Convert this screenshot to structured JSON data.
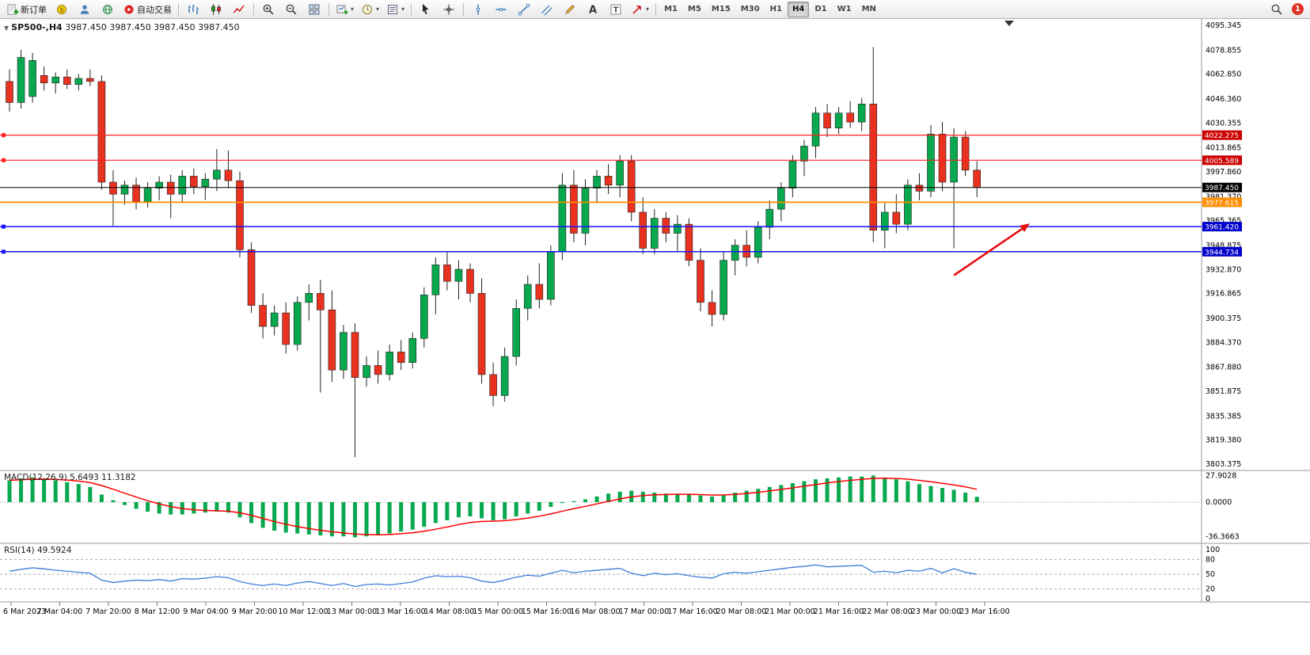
{
  "toolbar": {
    "items": [
      {
        "name": "new-order-button",
        "icon": "neworder",
        "label": "新订单"
      },
      {
        "name": "deposit-funds-icon",
        "icon": "coin"
      },
      {
        "name": "profile-icon",
        "icon": "user"
      },
      {
        "name": "community-icon",
        "icon": "globe"
      },
      {
        "name": "auto-trading-button",
        "icon": "autotrade",
        "label": "自动交易"
      },
      {
        "sep": true
      },
      {
        "name": "bar-chart-icon",
        "icon": "bars"
      },
      {
        "name": "candlestick-chart-icon",
        "icon": "candles"
      },
      {
        "name": "line-chart-icon",
        "icon": "linechart"
      },
      {
        "sep": true
      },
      {
        "name": "zoom-in-icon",
        "icon": "zoomin"
      },
      {
        "name": "zoom-out-icon",
        "icon": "zoomout"
      },
      {
        "name": "tile-windows-icon",
        "icon": "tile"
      },
      {
        "sep": true
      },
      {
        "name": "new-chart-icon",
        "icon": "newchart",
        "dropdown": true
      },
      {
        "name": "profiles-icon",
        "icon": "clock",
        "dropdown": true
      },
      {
        "name": "templates-icon",
        "icon": "templates",
        "dropdown": true
      },
      {
        "sep": true
      },
      {
        "name": "cursor-icon",
        "icon": "cursor"
      },
      {
        "name": "crosshair-icon",
        "icon": "crosshair"
      },
      {
        "sep": true
      },
      {
        "name": "vertical-line-icon",
        "icon": "vline"
      },
      {
        "name": "horizontal-line-icon",
        "icon": "hline"
      },
      {
        "name": "trendline-icon",
        "icon": "trendline"
      },
      {
        "name": "equidistant-channel-icon",
        "icon": "channel"
      },
      {
        "name": "draw-tools-icon",
        "icon": "draw"
      },
      {
        "name": "text-label-button",
        "icon": "textA"
      },
      {
        "name": "text-box-button",
        "icon": "textT"
      },
      {
        "name": "arrow-objects-icon",
        "icon": "arrows",
        "dropdown": true
      },
      {
        "sep": true
      }
    ],
    "timeframes": [
      "M1",
      "M5",
      "M15",
      "M30",
      "H1",
      "H4",
      "D1",
      "W1",
      "MN"
    ],
    "active_timeframe": "H4",
    "right_items": [
      {
        "name": "symbol-search-button",
        "icon": "search"
      }
    ],
    "notification_badge": "1"
  },
  "chart_data": {
    "type": "candlestick",
    "header": {
      "caret": "▼",
      "symbol": "SP500-,H4",
      "quotes": "3987.450 3987.450 3987.450 3987.450"
    },
    "ylim": [
      3803.375,
      4095.345
    ],
    "price_axis_labels": [
      "4095.345",
      "4078.855",
      "4062.850",
      "4046.360",
      "4030.355",
      "4013.865",
      "3997.860",
      "3981.370",
      "3965.365",
      "3948.875",
      "3932.870",
      "3916.865",
      "3900.375",
      "3884.370",
      "3867.880",
      "3851.875",
      "3835.385",
      "3819.380",
      "3803.375"
    ],
    "time_labels": [
      "6 Mar 2023",
      "7 Mar 04:00",
      "7 Mar 20:00",
      "8 Mar 12:00",
      "9 Mar 04:00",
      "9 Mar 20:00",
      "10 Mar 12:00",
      "13 Mar 00:00",
      "13 Mar 16:00",
      "14 Mar 08:00",
      "15 Mar 00:00",
      "15 Mar 16:00",
      "16 Mar 08:00",
      "17 Mar 00:00",
      "17 Mar 16:00",
      "20 Mar 08:00",
      "21 Mar 00:00",
      "21 Mar 16:00",
      "22 Mar 08:00",
      "23 Mar 00:00",
      "23 Mar 16:00"
    ],
    "levels": [
      {
        "label": "4022.275",
        "price": 4022.275,
        "line_color": "#ff2020",
        "tag_color": "#cc0000",
        "width": 1.2,
        "marker": true
      },
      {
        "label": "4005.589",
        "price": 4005.589,
        "line_color": "#ff2020",
        "tag_color": "#cc0000",
        "width": 1.2,
        "marker": true
      },
      {
        "label": "3987.450",
        "price": 3987.45,
        "line_color": "#000000",
        "tag_color": "#000000",
        "width": 1,
        "marker": false
      },
      {
        "label": "3977.615",
        "price": 3977.615,
        "line_color": "#ff8d00",
        "tag_color": "#ff8d00",
        "width": 1.8,
        "marker": false
      },
      {
        "label": "3961.420",
        "price": 3961.42,
        "line_color": "#1515ff",
        "tag_color": "#0000cc",
        "width": 1.5,
        "marker": true
      },
      {
        "label": "3944.734",
        "price": 3944.734,
        "line_color": "#1515ff",
        "tag_color": "#0000cc",
        "width": 1.5,
        "marker": true
      }
    ],
    "colors": {
      "up": "#07a84e",
      "down": "#e8321f",
      "wick": "#222222"
    },
    "ohlc": [
      [
        4058,
        4066,
        4038,
        4044
      ],
      [
        4044,
        4079,
        4040,
        4074
      ],
      [
        4048,
        4077,
        4044,
        4072
      ],
      [
        4062,
        4068,
        4052,
        4057
      ],
      [
        4057,
        4064,
        4050,
        4061
      ],
      [
        4061,
        4066,
        4053,
        4056
      ],
      [
        4056,
        4063,
        4052,
        4060
      ],
      [
        4060,
        4066,
        4055,
        4058
      ],
      [
        4058,
        4062,
        3986,
        3991
      ],
      [
        3991,
        3999,
        3962,
        3983
      ],
      [
        3983,
        3992,
        3976,
        3989
      ],
      [
        3989,
        3994,
        3973,
        3978
      ],
      [
        3978,
        3991,
        3974,
        3987
      ],
      [
        3987,
        3995,
        3979,
        3991
      ],
      [
        3991,
        3996,
        3967,
        3983
      ],
      [
        3983,
        3999,
        3977,
        3995
      ],
      [
        3995,
        4000,
        3983,
        3988
      ],
      [
        3988,
        3997,
        3979,
        3993
      ],
      [
        3993,
        4013,
        3985,
        3999
      ],
      [
        3999,
        4012,
        3987,
        3992
      ],
      [
        3992,
        3998,
        3941,
        3946
      ],
      [
        3946,
        3951,
        3904,
        3909
      ],
      [
        3909,
        3917,
        3887,
        3895
      ],
      [
        3895,
        3909,
        3889,
        3904
      ],
      [
        3904,
        3911,
        3877,
        3883
      ],
      [
        3883,
        3915,
        3879,
        3911
      ],
      [
        3911,
        3923,
        3899,
        3917
      ],
      [
        3917,
        3926,
        3851,
        3906
      ],
      [
        3906,
        3919,
        3858,
        3866
      ],
      [
        3866,
        3896,
        3860,
        3891
      ],
      [
        3891,
        3897,
        3808,
        3861
      ],
      [
        3861,
        3875,
        3855,
        3869
      ],
      [
        3869,
        3879,
        3857,
        3863
      ],
      [
        3863,
        3883,
        3859,
        3878
      ],
      [
        3878,
        3886,
        3866,
        3871
      ],
      [
        3871,
        3891,
        3867,
        3887
      ],
      [
        3887,
        3921,
        3881,
        3916
      ],
      [
        3916,
        3941,
        3903,
        3936
      ],
      [
        3936,
        3945,
        3919,
        3925
      ],
      [
        3925,
        3939,
        3913,
        3933
      ],
      [
        3933,
        3937,
        3911,
        3917
      ],
      [
        3917,
        3927,
        3857,
        3863
      ],
      [
        3863,
        3871,
        3842,
        3849
      ],
      [
        3849,
        3881,
        3845,
        3875
      ],
      [
        3875,
        3913,
        3869,
        3907
      ],
      [
        3907,
        3929,
        3899,
        3923
      ],
      [
        3923,
        3937,
        3907,
        3913
      ],
      [
        3913,
        3949,
        3909,
        3945
      ],
      [
        3945,
        3997,
        3939,
        3989
      ],
      [
        3989,
        3999,
        3951,
        3957
      ],
      [
        3957,
        3993,
        3949,
        3987
      ],
      [
        3987,
        3999,
        3977,
        3995
      ],
      [
        3995,
        4003,
        3983,
        3989
      ],
      [
        3989,
        4009,
        3981,
        4005
      ],
      [
        4005,
        4009,
        3965,
        3971
      ],
      [
        3971,
        3981,
        3943,
        3947
      ],
      [
        3947,
        3973,
        3943,
        3967
      ],
      [
        3967,
        3971,
        3951,
        3957
      ],
      [
        3957,
        3969,
        3945,
        3963
      ],
      [
        3963,
        3967,
        3935,
        3939
      ],
      [
        3939,
        3947,
        3905,
        3911
      ],
      [
        3911,
        3919,
        3895,
        3903
      ],
      [
        3903,
        3945,
        3899,
        3939
      ],
      [
        3939,
        3953,
        3929,
        3949
      ],
      [
        3949,
        3959,
        3935,
        3941
      ],
      [
        3941,
        3965,
        3937,
        3961
      ],
      [
        3961,
        3979,
        3953,
        3973
      ],
      [
        3973,
        3991,
        3965,
        3987
      ],
      [
        3987,
        4009,
        3981,
        4005
      ],
      [
        4005,
        4019,
        3995,
        4015
      ],
      [
        4015,
        4041,
        4007,
        4037
      ],
      [
        4037,
        4043,
        4021,
        4027
      ],
      [
        4027,
        4041,
        4023,
        4037
      ],
      [
        4037,
        4045,
        4027,
        4031
      ],
      [
        4031,
        4047,
        4025,
        4043
      ],
      [
        4043,
        4081,
        3951,
        3959
      ],
      [
        3959,
        3977,
        3947,
        3971
      ],
      [
        3971,
        3983,
        3957,
        3963
      ],
      [
        3963,
        3993,
        3959,
        3989
      ],
      [
        3989,
        3997,
        3979,
        3985
      ],
      [
        3985,
        4029,
        3981,
        4023
      ],
      [
        4023,
        4031,
        3985,
        3991
      ],
      [
        3991,
        4027,
        3947,
        4021
      ],
      [
        4021,
        4025,
        3995,
        3999
      ],
      [
        3999,
        4005,
        3981,
        3987.45
      ]
    ],
    "macd": {
      "label": "MACD(12,26,9) 5.6493 11.3182",
      "axis_labels": [
        "27.9028",
        "0.0000",
        "-36.3663"
      ],
      "ylim": [
        -40,
        30
      ],
      "histogram_color": "#07a84e",
      "signal_color": "#ff0000",
      "values": [
        23,
        25,
        26,
        25,
        23,
        21,
        19,
        16,
        8,
        2,
        -3,
        -7,
        -10,
        -12,
        -13,
        -13,
        -12,
        -11,
        -10,
        -11,
        -16,
        -22,
        -27,
        -30,
        -32,
        -33,
        -34,
        -35,
        -36,
        -36,
        -37,
        -36,
        -35,
        -33,
        -31,
        -29,
        -26,
        -22,
        -19,
        -16,
        -15,
        -17,
        -19,
        -18,
        -15,
        -12,
        -9,
        -5,
        -1,
        1,
        3,
        6,
        9,
        11,
        12,
        11,
        10,
        9,
        9,
        8,
        7,
        6,
        8,
        10,
        12,
        14,
        16,
        18,
        20,
        22,
        24,
        25,
        26,
        27,
        27,
        28,
        26,
        24,
        22,
        19,
        17,
        15,
        13,
        10,
        5.65
      ]
    },
    "rsi": {
      "label": "RSI(14) 49.5924",
      "axis_labels": [
        "100",
        "80",
        "50",
        "20",
        "0"
      ],
      "levels": [
        80,
        50,
        20
      ],
      "ylim": [
        0,
        100
      ],
      "line_color": "#3b7dd8",
      "values": [
        56,
        60,
        63,
        61,
        58,
        56,
        54,
        52,
        38,
        33,
        36,
        38,
        37,
        39,
        36,
        41,
        40,
        42,
        45,
        43,
        35,
        30,
        27,
        30,
        27,
        32,
        35,
        31,
        27,
        31,
        25,
        29,
        30,
        28,
        31,
        34,
        42,
        47,
        45,
        46,
        43,
        36,
        33,
        38,
        44,
        48,
        46,
        52,
        58,
        53,
        56,
        58,
        60,
        62,
        52,
        47,
        52,
        49,
        51,
        47,
        44,
        42,
        51,
        54,
        52,
        55,
        58,
        61,
        64,
        66,
        69,
        65,
        66,
        67,
        68,
        54,
        56,
        53,
        58,
        56,
        62,
        53,
        61,
        54,
        49.59
      ]
    },
    "arrow": {
      "color": "#e81010",
      "from": {
        "bar": 82,
        "price": 3929
      },
      "to": {
        "bar": 88.6,
        "price": 3963.5
      }
    }
  }
}
